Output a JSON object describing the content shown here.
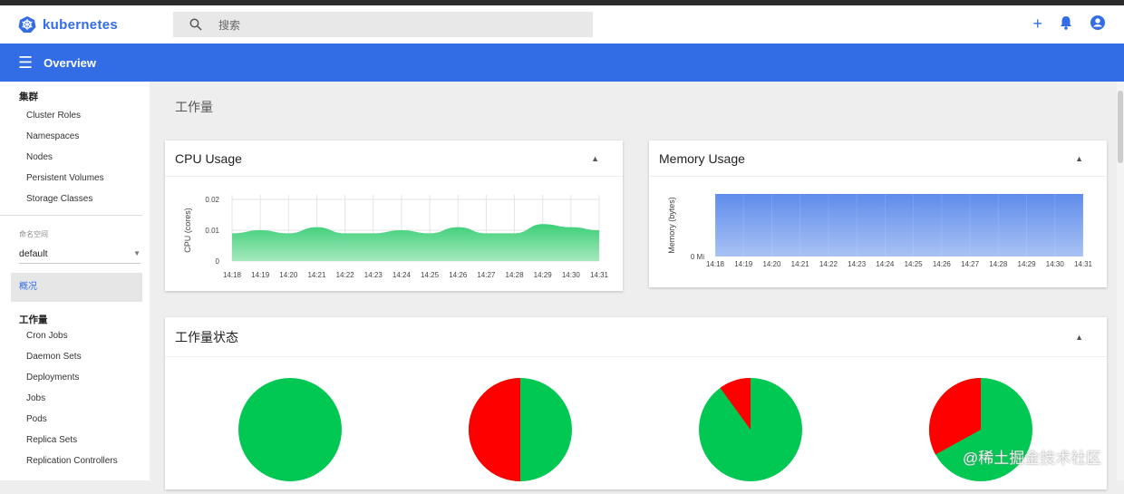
{
  "header": {
    "brand": "kubernetes",
    "search_placeholder": "搜索",
    "icons": [
      "plus-icon",
      "bell-icon",
      "account-icon"
    ]
  },
  "toolbar": {
    "title": "Overview"
  },
  "sidebar": {
    "cluster_heading": "集群",
    "cluster_items": [
      "Cluster Roles",
      "Namespaces",
      "Nodes",
      "Persistent Volumes",
      "Storage Classes"
    ],
    "namespace_label": "命名空间",
    "namespace_value": "default",
    "overview": "概况",
    "workloads_heading": "工作量",
    "workload_items": [
      "Cron Jobs",
      "Daemon Sets",
      "Deployments",
      "Jobs",
      "Pods",
      "Replica Sets",
      "Replication Controllers"
    ]
  },
  "main": {
    "title": "工作量",
    "status_title": "工作量状态"
  },
  "colors": {
    "brand": "#326de6",
    "cpu": "#2ecc71",
    "memory": "#6b93ec",
    "running": "#00c853",
    "failed": "#ff0000"
  },
  "watermark": "@稀土掘金技术社区",
  "chart_data": [
    {
      "type": "area",
      "title": "CPU Usage",
      "ylabel": "CPU (cores)",
      "ylim": [
        0,
        0.02
      ],
      "yticks": [
        "0",
        "0.01",
        "0.02"
      ],
      "x": [
        "14:18",
        "14:19",
        "14:20",
        "14:21",
        "14:22",
        "14:23",
        "14:24",
        "14:25",
        "14:26",
        "14:27",
        "14:28",
        "14:29",
        "14:30",
        "14:31"
      ],
      "values": [
        0.009,
        0.01,
        0.009,
        0.011,
        0.009,
        0.009,
        0.01,
        0.009,
        0.011,
        0.009,
        0.009,
        0.012,
        0.011,
        0.01
      ],
      "grid": true
    },
    {
      "type": "area",
      "title": "Memory Usage",
      "ylabel": "Memory (bytes)",
      "yticks": [
        "0 Mi"
      ],
      "x": [
        "14:18",
        "14:19",
        "14:20",
        "14:21",
        "14:22",
        "14:23",
        "14:24",
        "14:25",
        "14:26",
        "14:27",
        "14:28",
        "14:29",
        "14:30",
        "14:31"
      ],
      "values": [
        1,
        1,
        1,
        1,
        1,
        1,
        1,
        1,
        1,
        1,
        1,
        1,
        1,
        1
      ],
      "grid": true
    },
    {
      "type": "pie",
      "title": "工作量状态",
      "pies": [
        {
          "failed_fraction": 0,
          "running_fraction": 1
        },
        {
          "failed_fraction": 0.5,
          "running_fraction": 0.5
        },
        {
          "failed_fraction": 0.1,
          "running_fraction": 0.9
        },
        {
          "failed_fraction": 0.33,
          "running_fraction": 0.67
        }
      ]
    }
  ]
}
